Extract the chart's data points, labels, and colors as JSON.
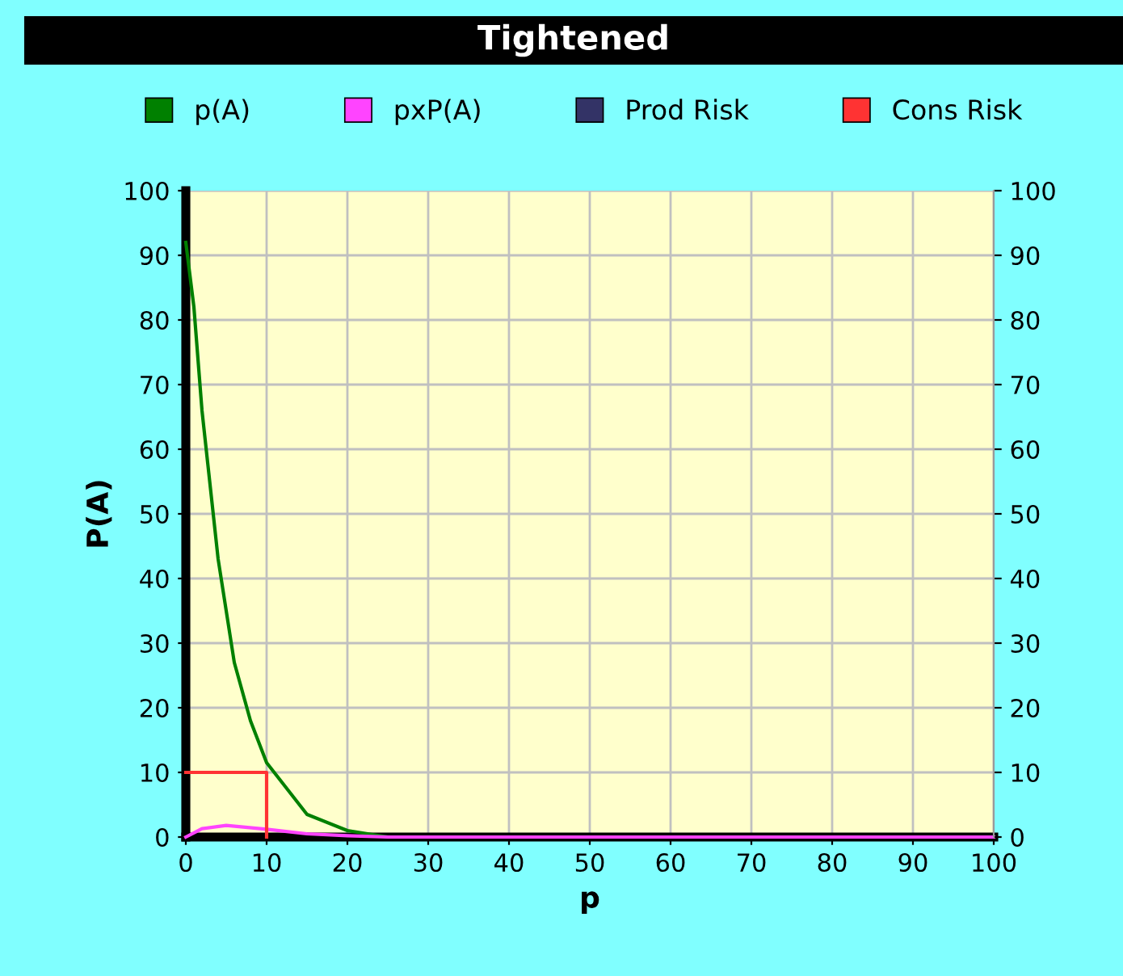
{
  "chart_data": {
    "type": "line",
    "title": "Tightened",
    "xlabel": "p",
    "ylabel": "P(A)",
    "xlim": [
      0,
      100
    ],
    "xticks": [
      0,
      10,
      20,
      30,
      40,
      50,
      60,
      70,
      80,
      90,
      100
    ],
    "ylim": [
      0,
      100
    ],
    "yticks": [
      0,
      10,
      20,
      30,
      40,
      50,
      60,
      70,
      80,
      90,
      100
    ],
    "y2lim": [
      0,
      100
    ],
    "y2ticks": [
      0,
      10,
      20,
      30,
      40,
      50,
      60,
      70,
      80,
      90,
      100
    ],
    "grid": true,
    "legend": "top",
    "marker": "none",
    "line_style": "solid",
    "series": [
      {
        "name": "p(A)",
        "color": "#008000",
        "x": [
          0,
          1,
          2,
          4,
          6,
          8,
          10,
          15,
          20,
          25,
          100
        ],
        "values": [
          92,
          82,
          66,
          43,
          27,
          18,
          11.5,
          3.5,
          1,
          0,
          0
        ]
      },
      {
        "name": "pxP(A)",
        "color": "#ff44ff",
        "x": [
          0,
          2,
          5,
          10,
          15,
          20,
          25,
          100
        ],
        "values": [
          0,
          1.3,
          1.8,
          1.2,
          0.5,
          0.2,
          0,
          0
        ]
      },
      {
        "name": "Prod Risk",
        "color": "#333366"
      },
      {
        "name": "Cons Risk",
        "color": "#ff3333",
        "x": [
          0,
          10,
          10
        ],
        "values": [
          10,
          10,
          0
        ]
      }
    ]
  }
}
